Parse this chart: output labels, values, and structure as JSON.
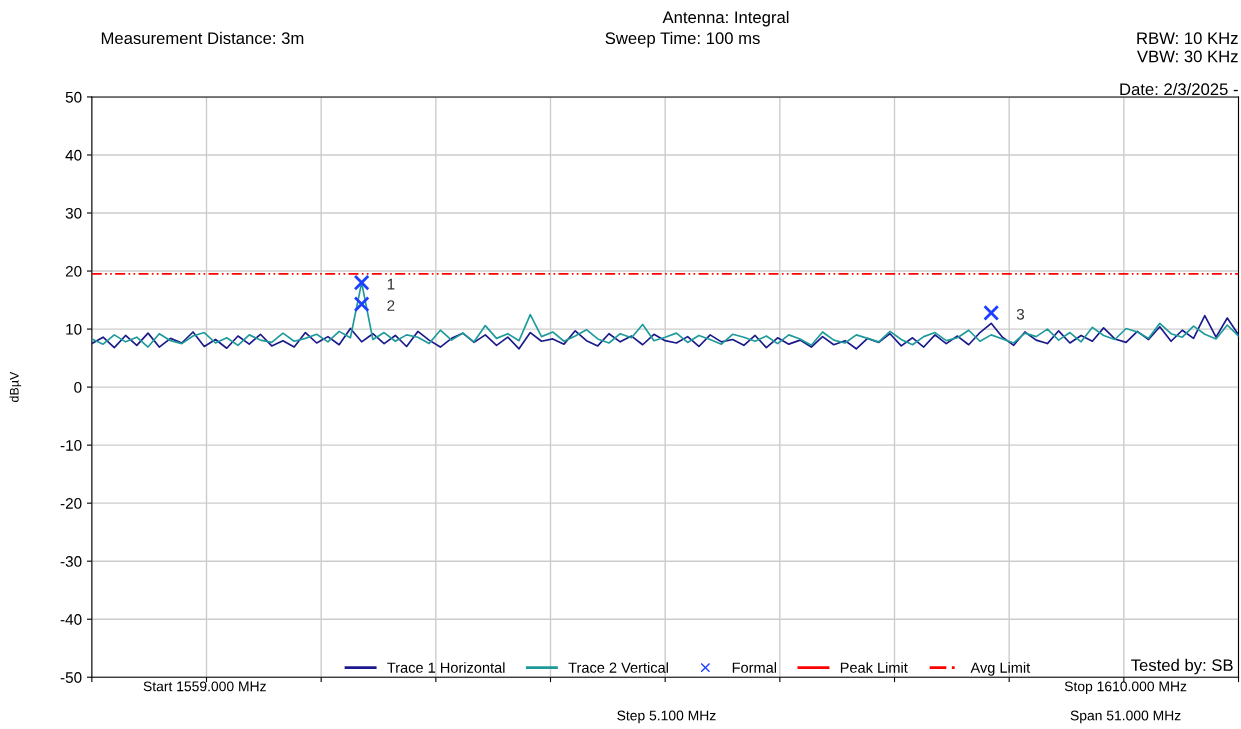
{
  "chart_data": {
    "type": "line",
    "title": "Antenna: Integral",
    "ylabel": "dBµV",
    "categories": [
      null,
      null,
      null,
      null,
      null,
      null,
      null,
      null,
      null,
      null,
      null,
      null,
      null,
      null,
      null,
      null,
      null,
      null,
      null,
      null,
      null,
      null,
      null,
      null,
      null,
      null,
      null,
      null,
      null,
      null,
      null,
      null,
      null,
      null,
      null,
      null,
      null,
      null,
      null,
      null,
      null,
      null,
      null,
      null,
      null,
      null,
      null,
      null,
      null,
      null,
      null,
      null,
      null,
      null,
      null,
      null,
      null,
      null,
      null,
      null,
      null,
      null,
      null,
      null,
      null,
      null,
      null,
      null,
      null,
      null,
      null,
      null,
      null,
      null,
      null,
      null,
      null,
      null,
      null,
      null,
      null,
      null,
      null,
      null,
      null,
      null,
      null,
      null,
      null,
      null,
      null,
      null,
      null,
      null,
      null,
      null,
      null,
      null,
      null,
      null,
      null,
      null,
      null
    ],
    "series": [
      {
        "name": "Trace 1 Horizontal",
        "color": "#1a1a8c",
        "values": [
          7.5,
          8.6,
          6.8,
          8.9,
          7.2,
          9.3,
          6.9,
          8.4,
          7.6,
          9.5,
          7.0,
          8.2,
          6.7,
          8.8,
          7.4,
          9.1,
          7.1,
          8.0,
          6.9,
          9.4,
          7.6,
          8.7,
          7.3,
          10.1,
          7.8,
          9.2,
          7.5,
          8.9,
          7.0,
          9.6,
          8.1,
          6.9,
          8.4,
          9.3,
          7.7,
          9.0,
          7.2,
          8.6,
          6.6,
          9.4,
          7.9,
          8.3,
          7.4,
          9.7,
          8.0,
          7.1,
          9.2,
          7.8,
          8.8,
          7.3,
          9.1,
          8.0,
          7.6,
          8.7,
          7.0,
          9.0,
          7.8,
          8.2,
          7.2,
          8.9,
          6.8,
          8.5,
          7.4,
          8.1,
          6.9,
          8.7,
          7.3,
          8.0,
          6.6,
          8.4,
          7.7,
          9.2,
          7.1,
          8.5,
          6.9,
          9.0,
          7.5,
          8.8,
          7.3,
          9.4,
          11.0,
          8.6,
          7.2,
          9.5,
          8.1,
          7.5,
          9.7,
          7.6,
          8.9,
          7.9,
          10.2,
          8.3,
          7.7,
          9.6,
          8.2,
          10.4,
          7.9,
          9.8,
          8.4,
          12.3,
          8.6,
          11.9,
          9.0
        ]
      },
      {
        "name": "Trace 2 Vertical",
        "color": "#1f9a9a",
        "values": [
          8.3,
          7.4,
          9.0,
          7.8,
          8.6,
          6.9,
          9.2,
          8.0,
          7.5,
          8.8,
          9.4,
          7.6,
          8.5,
          7.2,
          9.0,
          8.1,
          7.7,
          9.3,
          7.9,
          8.4,
          9.1,
          7.8,
          9.6,
          8.5,
          18.0,
          8.2,
          9.4,
          7.9,
          9.0,
          8.6,
          7.5,
          9.8,
          8.1,
          9.3,
          7.8,
          10.6,
          8.4,
          9.2,
          8.0,
          12.5,
          8.7,
          9.5,
          7.9,
          8.8,
          9.9,
          8.3,
          7.6,
          9.2,
          8.5,
          10.8,
          8.0,
          8.6,
          9.3,
          7.7,
          8.9,
          8.2,
          7.4,
          9.1,
          8.6,
          7.9,
          8.8,
          7.5,
          9.0,
          8.3,
          7.2,
          9.5,
          8.1,
          7.6,
          9.0,
          8.4,
          7.8,
          9.6,
          8.2,
          7.3,
          8.7,
          9.4,
          8.0,
          8.5,
          9.8,
          7.9,
          9.0,
          8.3,
          7.6,
          9.3,
          8.7,
          10.0,
          8.1,
          9.4,
          7.8,
          10.3,
          8.9,
          8.2,
          10.1,
          9.5,
          8.4,
          11.0,
          9.2,
          8.6,
          10.5,
          9.1,
          8.3,
          10.7,
          8.8
        ]
      },
      {
        "name": "Formal",
        "type": "scatter",
        "marker": "cross",
        "color": "#1f3fff",
        "values": [
          null,
          null,
          null,
          null,
          null,
          null,
          null,
          null,
          null,
          null,
          null,
          null,
          null,
          null,
          null,
          null,
          null,
          null,
          null,
          null,
          null,
          null,
          null,
          null,
          18,
          null,
          null,
          null,
          null,
          null,
          null,
          null,
          null,
          null,
          null,
          null,
          null,
          null,
          null,
          null,
          null,
          null,
          null,
          null,
          null,
          null,
          null,
          null,
          null,
          null,
          null,
          null,
          null,
          null,
          null,
          null,
          null,
          null,
          null,
          null,
          null,
          null,
          null,
          null,
          null,
          null,
          null,
          null,
          null,
          null,
          null,
          null,
          null,
          null,
          null,
          null,
          null,
          null,
          null,
          null,
          12.8,
          null,
          null,
          null,
          null,
          null,
          null,
          null,
          null,
          null,
          null,
          null,
          null,
          null,
          null,
          null,
          null,
          null,
          null,
          null,
          null,
          null,
          null
        ]
      },
      {
        "type": "scatter",
        "marker": "cross",
        "color": "#1f3fff",
        "values": [
          null,
          null,
          null,
          null,
          null,
          null,
          null,
          null,
          null,
          null,
          null,
          null,
          null,
          null,
          null,
          null,
          null,
          null,
          null,
          null,
          null,
          null,
          null,
          null,
          14.3,
          null,
          null,
          null,
          null,
          null,
          null,
          null,
          null,
          null,
          null,
          null,
          null,
          null,
          null,
          null,
          null,
          null,
          null,
          null,
          null,
          null,
          null,
          null,
          null,
          null,
          null,
          null,
          null,
          null,
          null,
          null,
          null,
          null,
          null,
          null,
          null,
          null,
          null,
          null,
          null,
          null,
          null,
          null,
          null,
          null,
          null,
          null,
          null,
          null,
          null,
          null,
          null,
          null,
          null,
          null,
          null,
          null,
          null,
          null,
          null,
          null,
          null,
          null,
          null,
          null,
          null,
          null,
          null,
          null,
          null,
          null,
          null,
          null,
          null,
          null,
          null,
          null,
          null
        ]
      },
      {
        "name": "Peak Limit",
        "color": "#ff0000",
        "values": [
          null,
          null,
          null,
          null,
          null,
          null,
          null,
          null,
          null,
          null,
          null,
          null,
          null,
          null,
          null,
          null,
          null,
          null,
          null,
          null,
          null,
          null,
          null,
          null,
          null,
          null,
          null,
          null,
          null,
          null,
          null,
          null,
          null,
          null,
          null,
          null,
          null,
          null,
          null,
          null,
          null,
          null,
          null,
          null,
          null,
          null,
          null,
          null,
          null,
          null,
          null,
          null,
          null,
          null,
          null,
          null,
          null,
          null,
          null,
          null,
          null,
          null,
          null,
          null,
          null,
          null,
          null,
          null,
          null,
          null,
          null,
          null,
          null,
          null,
          null,
          null,
          null,
          null,
          null,
          null,
          null,
          null,
          null,
          null,
          null,
          null,
          null,
          null,
          null,
          null,
          null,
          null,
          null,
          null,
          null,
          null,
          null,
          null,
          null,
          null,
          null,
          null,
          null
        ]
      },
      {
        "name": "Avg Limit",
        "color": "#ff0000",
        "line_style": "dashed",
        "values": [
          19.5,
          19.5,
          19.5,
          19.5,
          19.5,
          19.5,
          19.5,
          19.5,
          19.5,
          19.5,
          19.5,
          19.5,
          19.5,
          19.5,
          19.5,
          19.5,
          19.5,
          19.5,
          19.5,
          19.5,
          19.5,
          19.5,
          19.5,
          19.5,
          19.5,
          19.5,
          19.5,
          19.5,
          19.5,
          19.5,
          19.5,
          19.5,
          19.5,
          19.5,
          19.5,
          19.5,
          19.5,
          19.5,
          19.5,
          19.5,
          19.5,
          19.5,
          19.5,
          19.5,
          19.5,
          19.5,
          19.5,
          19.5,
          19.5,
          19.5,
          19.5,
          19.5,
          19.5,
          19.5,
          19.5,
          19.5,
          19.5,
          19.5,
          19.5,
          19.5,
          19.5,
          19.5,
          19.5,
          19.5,
          19.5,
          19.5,
          19.5,
          19.5,
          19.5,
          19.5,
          19.5,
          19.5,
          19.5,
          19.5,
          19.5,
          19.5,
          19.5,
          19.5,
          19.5,
          19.5,
          19.5,
          19.5,
          19.5,
          19.5,
          19.5,
          19.5,
          19.5,
          19.5,
          19.5,
          19.5,
          19.5,
          19.5,
          19.5,
          19.5,
          19.5,
          19.5,
          19.5,
          19.5,
          19.5,
          19.5,
          19.5,
          19.5,
          19.5
        ]
      }
    ],
    "ylim": [
      -50,
      50
    ],
    "yticks": [
      -50,
      -40,
      -30,
      -20,
      -10,
      0,
      10,
      20,
      30,
      40,
      50
    ],
    "tick_labels": "y",
    "grid": true,
    "legend": "bottom",
    "annotations": [
      "Measurement Distance: 3m",
      "Sweep Time: 100 ms",
      "RBW: 10 KHz",
      "VBW: 30 KHz",
      "Date: 2/3/2025 -",
      "Tested by: SB",
      "Start 1559.000 MHz",
      "Stop 1610.000 MHz",
      "Step 5.100 MHz",
      "Span 51.000 MHz",
      "1",
      "2",
      "3"
    ]
  }
}
